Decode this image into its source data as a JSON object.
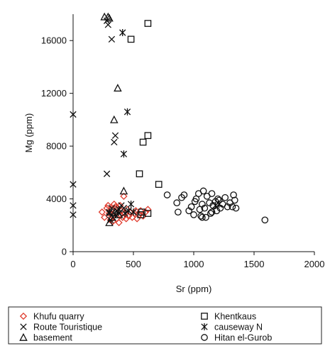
{
  "chart_data": {
    "type": "scatter",
    "xlabel": "Sr (ppm)",
    "ylabel": "Mg (ppm)",
    "xlim": [
      0,
      2000
    ],
    "ylim": [
      0,
      18000
    ],
    "x_ticks": [
      0,
      500,
      1000,
      1500,
      2000
    ],
    "y_ticks": [
      0,
      4000,
      8000,
      12000,
      16000
    ],
    "grid": false,
    "legend_position": "bottom",
    "colors": {
      "khufu": "#e03c2e",
      "default": "#111111"
    },
    "series": [
      {
        "name": "Khufu quarry",
        "marker": "diamond",
        "color": "#e03c2e",
        "points": [
          [
            240,
            3000
          ],
          [
            260,
            2600
          ],
          [
            280,
            3300
          ],
          [
            290,
            3500
          ],
          [
            300,
            2900
          ],
          [
            310,
            2400
          ],
          [
            320,
            3200
          ],
          [
            330,
            2700
          ],
          [
            340,
            3600
          ],
          [
            350,
            3000
          ],
          [
            360,
            2500
          ],
          [
            370,
            3300
          ],
          [
            380,
            2200
          ],
          [
            390,
            2800
          ],
          [
            400,
            3100
          ],
          [
            410,
            2600
          ],
          [
            420,
            4200
          ],
          [
            430,
            2900
          ],
          [
            440,
            2500
          ],
          [
            450,
            3200
          ],
          [
            460,
            2700
          ],
          [
            470,
            3000
          ],
          [
            490,
            2600
          ],
          [
            510,
            2900
          ],
          [
            530,
            2500
          ],
          [
            550,
            2800
          ],
          [
            560,
            3100
          ],
          [
            580,
            2700
          ],
          [
            600,
            3000
          ],
          [
            620,
            3200
          ],
          [
            330,
            2300
          ],
          [
            350,
            3400
          ],
          [
            390,
            3500
          ],
          [
            520,
            3100
          ]
        ]
      },
      {
        "name": "Route Touristique",
        "marker": "x",
        "color": "#111111",
        "points": [
          [
            0,
            10400
          ],
          [
            0,
            5100
          ],
          [
            0,
            3500
          ],
          [
            0,
            2800
          ],
          [
            280,
            17500
          ],
          [
            290,
            17200
          ],
          [
            320,
            16100
          ],
          [
            340,
            8300
          ],
          [
            350,
            8800
          ],
          [
            280,
            5900
          ],
          [
            300,
            2900
          ],
          [
            320,
            3300
          ],
          [
            330,
            2600
          ],
          [
            360,
            3100
          ],
          [
            380,
            2900
          ],
          [
            400,
            3500
          ],
          [
            420,
            3300
          ],
          [
            310,
            2400
          ]
        ]
      },
      {
        "name": "basement",
        "marker": "triangle",
        "color": "#111111",
        "points": [
          [
            260,
            17800
          ],
          [
            290,
            17800
          ],
          [
            300,
            17700
          ],
          [
            370,
            12400
          ],
          [
            340,
            10000
          ],
          [
            420,
            4600
          ],
          [
            300,
            2200
          ],
          [
            320,
            2600
          ],
          [
            350,
            3000
          ],
          [
            380,
            2800
          ]
        ]
      },
      {
        "name": "Khentkaus",
        "marker": "square",
        "color": "#111111",
        "points": [
          [
            620,
            17300
          ],
          [
            480,
            16100
          ],
          [
            620,
            8800
          ],
          [
            580,
            8300
          ],
          [
            550,
            5900
          ],
          [
            710,
            5100
          ],
          [
            570,
            3000
          ],
          [
            620,
            2900
          ],
          [
            560,
            2800
          ]
        ]
      },
      {
        "name": "causeway N",
        "marker": "asterisk",
        "color": "#111111",
        "points": [
          [
            410,
            16600
          ],
          [
            450,
            10600
          ],
          [
            420,
            7400
          ],
          [
            480,
            3600
          ],
          [
            300,
            3000
          ],
          [
            350,
            2800
          ],
          [
            380,
            3200
          ],
          [
            430,
            2900
          ],
          [
            460,
            3100
          ],
          [
            500,
            3000
          ],
          [
            1180,
            3500
          ],
          [
            1210,
            3600
          ]
        ]
      },
      {
        "name": "Hitan el-Gurob",
        "marker": "circle",
        "color": "#111111",
        "points": [
          [
            780,
            4300
          ],
          [
            860,
            3700
          ],
          [
            870,
            3000
          ],
          [
            900,
            4100
          ],
          [
            920,
            4300
          ],
          [
            960,
            3100
          ],
          [
            980,
            3400
          ],
          [
            1000,
            2800
          ],
          [
            1010,
            3800
          ],
          [
            1020,
            4000
          ],
          [
            1040,
            4400
          ],
          [
            1050,
            3200
          ],
          [
            1060,
            2700
          ],
          [
            1070,
            3600
          ],
          [
            1080,
            4600
          ],
          [
            1090,
            3300
          ],
          [
            1100,
            2600
          ],
          [
            1110,
            4200
          ],
          [
            1130,
            3700
          ],
          [
            1140,
            2900
          ],
          [
            1150,
            4400
          ],
          [
            1160,
            3500
          ],
          [
            1180,
            3800
          ],
          [
            1190,
            3100
          ],
          [
            1200,
            4000
          ],
          [
            1220,
            3300
          ],
          [
            1240,
            3600
          ],
          [
            1260,
            4100
          ],
          [
            1280,
            3400
          ],
          [
            1300,
            3700
          ],
          [
            1320,
            3400
          ],
          [
            1330,
            4300
          ],
          [
            1340,
            3900
          ],
          [
            1350,
            3300
          ],
          [
            1590,
            2400
          ],
          [
            1210,
            3900
          ],
          [
            1150,
            3000
          ],
          [
            1070,
            2600
          ]
        ]
      }
    ]
  }
}
